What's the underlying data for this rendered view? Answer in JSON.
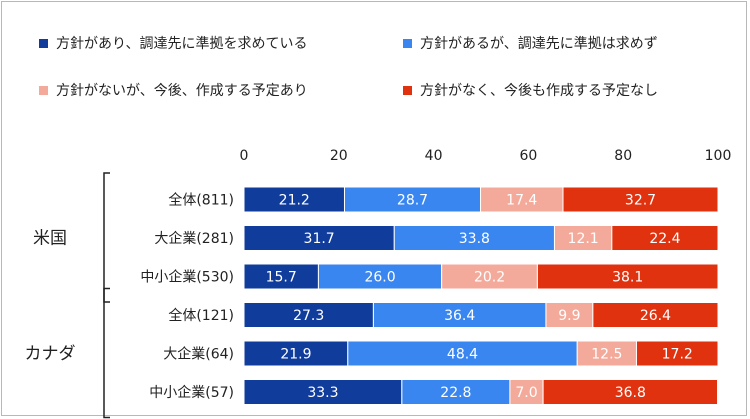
{
  "legend": [
    {
      "label": "方針があり、調達先に準拠を求めている",
      "color": "#103c9c"
    },
    {
      "label": "方針があるが、調達先に準拠は求めず",
      "color": "#3a86f0"
    },
    {
      "label": "方針がないが、今後、作成する予定あり",
      "color": "#f4aa9b"
    },
    {
      "label": "方針がなく、今後も作成する予定なし",
      "color": "#e0320f"
    }
  ],
  "chart_data": {
    "type": "bar",
    "orientation": "horizontal",
    "stacked": true,
    "xlim": [
      0,
      100
    ],
    "x_ticks": [
      "0",
      "20",
      "40",
      "60",
      "80",
      "100"
    ],
    "groups": [
      {
        "name": "米国",
        "categories": [
          "全体(811)",
          "大企業(281)",
          "中小企業(530)"
        ]
      },
      {
        "name": "カナダ",
        "categories": [
          "全体(121)",
          "大企業(64)",
          "中小企業(57)"
        ]
      }
    ],
    "categories": [
      "全体(811)",
      "大企業(281)",
      "中小企業(530)",
      "全体(121)",
      "大企業(64)",
      "中小企業(57)"
    ],
    "series": [
      {
        "name": "方針があり、調達先に準拠を求めている",
        "color": "#103c9c",
        "values": [
          21.2,
          31.7,
          15.7,
          27.3,
          21.9,
          33.3
        ]
      },
      {
        "name": "方針があるが、調達先に準拠は求めず",
        "color": "#3a86f0",
        "values": [
          28.7,
          33.8,
          26.0,
          36.4,
          48.4,
          22.8
        ]
      },
      {
        "name": "方針がないが、今後、作成する予定あり",
        "color": "#f4aa9b",
        "values": [
          17.4,
          12.1,
          20.2,
          9.9,
          12.5,
          7.0
        ]
      },
      {
        "name": "方針がなく、今後も作成する予定なし",
        "color": "#e0320f",
        "values": [
          32.7,
          22.4,
          38.1,
          26.4,
          17.2,
          36.8
        ]
      }
    ],
    "data_labels": [
      [
        "21.2",
        "31.7",
        "15.7",
        "27.3",
        "21.9",
        "33.3"
      ],
      [
        "28.7",
        "33.8",
        "26.0",
        "36.4",
        "48.4",
        "22.8"
      ],
      [
        "17.4",
        "12.1",
        "20.2",
        "9.9",
        "12.5",
        "7.0"
      ],
      [
        "32.7",
        "22.4",
        "38.1",
        "26.4",
        "17.2",
        "36.8"
      ]
    ],
    "label_color": "#ffffff"
  }
}
